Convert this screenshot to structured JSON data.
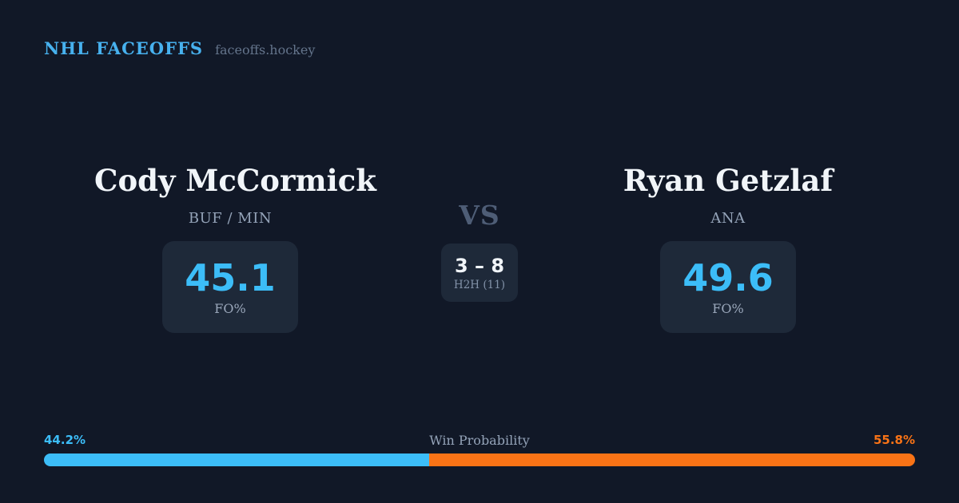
{
  "header": {
    "brand": "NHL FACEOFFS",
    "site": "faceoffs.hockey"
  },
  "matchup": {
    "player_left": {
      "name": "Cody McCormick",
      "teams": "BUF / MIN",
      "stat_value": "45.1",
      "stat_label": "FO%"
    },
    "player_right": {
      "name": "Ryan Getzlaf",
      "teams": "ANA",
      "stat_value": "49.6",
      "stat_label": "FO%"
    },
    "vs_label": "VS",
    "h2h": {
      "score": "3 – 8",
      "label": "H2H (11)"
    }
  },
  "win_probability": {
    "title": "Win Probability",
    "left_pct_label": "44.2%",
    "right_pct_label": "55.8%",
    "left_value": 44.2,
    "right_value": 55.8
  },
  "colors": {
    "background": "#111827",
    "panel": "#1e2939",
    "accent_blue": "#3cbdf8",
    "accent_orange": "#f97316",
    "brand_blue": "#47b1ee",
    "text_primary": "#f1f5f9",
    "text_muted": "#94a3b8"
  },
  "chart_data": {
    "type": "bar",
    "title": "Win Probability",
    "categories": [
      "Cody McCormick (BUF / MIN)",
      "Ryan Getzlaf (ANA)"
    ],
    "values": [
      44.2,
      55.8
    ],
    "unit": "%",
    "xlim": [
      0,
      100
    ],
    "colors": [
      "#3cbdf8",
      "#f97316"
    ],
    "annotations": [
      "Cody McCormick FO% 45.1",
      "Ryan Getzlaf FO% 49.6",
      "Head-to-head record 3 – 8 over 11 faceoffs"
    ],
    "legend": "none",
    "grid": false
  }
}
